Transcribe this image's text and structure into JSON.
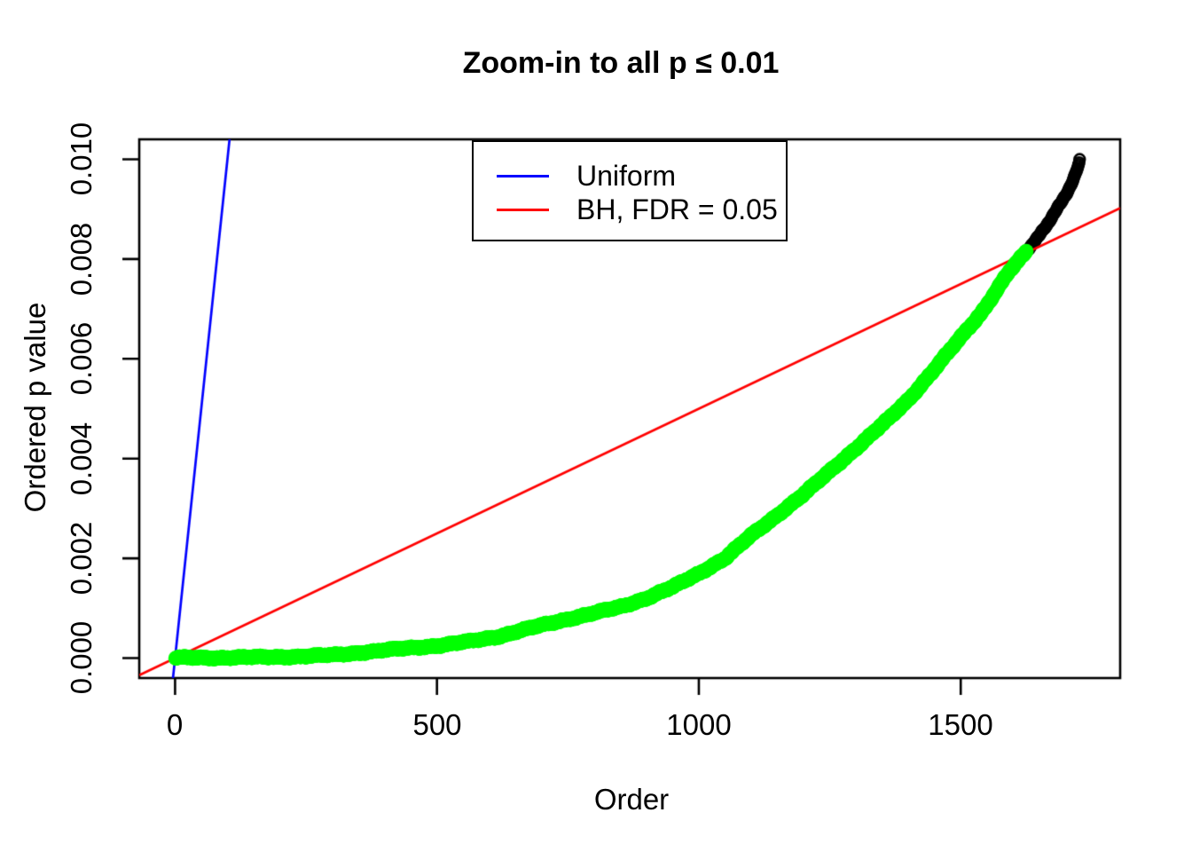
{
  "title": "Zoom-in to all p ≤ 0.01",
  "x_axis": {
    "label": "Order",
    "tick_labels": [
      "0",
      "500",
      "1000",
      "1500"
    ],
    "ticks": [
      0,
      500,
      1000,
      1500
    ],
    "range_padded": [
      -68.4,
      1804.4
    ]
  },
  "y_axis": {
    "label": "Ordered p value",
    "tick_labels": [
      "0.000",
      "0.002",
      "0.004",
      "0.006",
      "0.008",
      "0.010"
    ],
    "ticks": [
      0,
      0.002,
      0.004,
      0.006,
      0.008,
      0.01
    ],
    "range_padded": [
      -0.0004,
      0.0104
    ]
  },
  "legend": {
    "items": [
      {
        "label": "Uniform",
        "color": "#0000FF"
      },
      {
        "label": "BH, FDR = 0.05",
        "color": "#FF0000"
      }
    ]
  },
  "chart_data": {
    "type": "scatter",
    "title": "Zoom-in to all p ≤ 0.01",
    "xlabel": "Order",
    "ylabel": "Ordered p value",
    "xlim": [
      1,
      1727
    ],
    "ylim": [
      0,
      0.01
    ],
    "grid": false,
    "legend_position": "top-center",
    "n_points_shown": 1727,
    "n_significant_bh": 1625,
    "bh_crossing": {
      "order": 1625,
      "p": 0.00814
    },
    "lines": [
      {
        "name": "Uniform",
        "color": "#0000FF",
        "slope": 0.0001,
        "intercept": 0
      },
      {
        "name": "BH, FDR = 0.05",
        "color": "#FF0000",
        "slope": 5e-06,
        "intercept": 0
      }
    ],
    "series": [
      {
        "name": "ordered p-values (BH significant)",
        "marker": "filled-circle",
        "color": "#00FF00",
        "order_start": 1,
        "order_end": 1625,
        "anchors": [
          [
            1,
            4e-06
          ],
          [
            80,
            8e-06
          ],
          [
            160,
            1.6e-05
          ],
          [
            240,
            3.2e-05
          ],
          [
            300,
            6e-05
          ],
          [
            343,
            0.0001
          ],
          [
            400,
            0.000155
          ],
          [
            450,
            0.000205
          ],
          [
            512,
            0.00026
          ],
          [
            560,
            0.00033
          ],
          [
            620,
            0.00044
          ],
          [
            682,
            0.00061
          ],
          [
            740,
            0.00076
          ],
          [
            800,
            0.0009
          ],
          [
            851,
            0.00103
          ],
          [
            900,
            0.0012
          ],
          [
            950,
            0.00142
          ],
          [
            1000,
            0.0017
          ],
          [
            1050,
            0.002
          ],
          [
            1100,
            0.00246
          ],
          [
            1139,
            0.00278
          ],
          [
            1200,
            0.00328
          ],
          [
            1260,
            0.00384
          ],
          [
            1310,
            0.0043
          ],
          [
            1359,
            0.00476
          ],
          [
            1400,
            0.00518
          ],
          [
            1444,
            0.00572
          ],
          [
            1490,
            0.0063
          ],
          [
            1540,
            0.00693
          ],
          [
            1590,
            0.00772
          ],
          [
            1625,
            0.00814
          ]
        ]
      },
      {
        "name": "ordered p-values (not significant)",
        "marker": "open-circle",
        "color": "#000000",
        "order_start": 1626,
        "order_end": 1727,
        "anchors": [
          [
            1625,
            0.00814
          ],
          [
            1645,
            0.0084
          ],
          [
            1665,
            0.0087
          ],
          [
            1680,
            0.00895
          ],
          [
            1695,
            0.0092
          ],
          [
            1705,
            0.00938
          ],
          [
            1713,
            0.00955
          ],
          [
            1719,
            0.0097
          ],
          [
            1723,
            0.00982
          ],
          [
            1726,
            0.00992
          ],
          [
            1727,
            0.00998
          ]
        ]
      }
    ]
  }
}
